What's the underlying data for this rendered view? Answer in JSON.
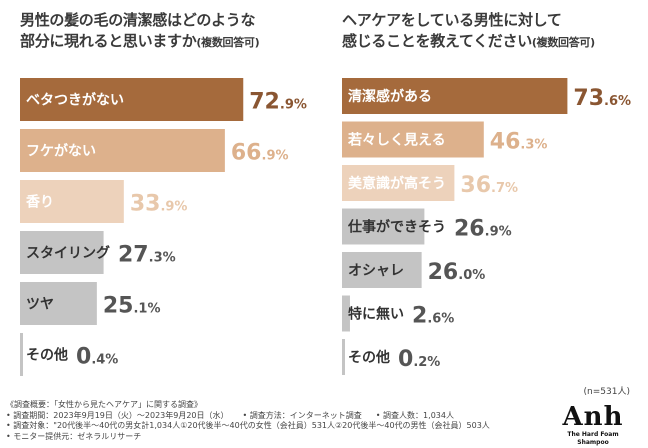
{
  "sample_note": "(n=531人)",
  "footer": {
    "survey_title": "《調査概要：「女性から見たヘアケア」に関する調査》",
    "period": "• 調査期間：2023年9月19日（火）〜2023年9月20日（水）",
    "method": "• 調査方法：インターネット調査",
    "count": "• 調査人数：1,034人",
    "target": "• 調査対象：\"20代後半〜40代の男女計1,034人①20代後半〜40代の女性（会社員）531人②20代後半〜40代の男性（会社員）503人",
    "provider": "• モニター提供元：ゼネラルリサーチ"
  },
  "logo": {
    "mark": "Anh",
    "sub": "The Hard Foam Shampoo"
  },
  "chart_data": [
    {
      "type": "bar",
      "orientation": "horizontal",
      "title_line1": "男性の髪の毛の清潔感はどのような",
      "title_line2": "部分に現れると思いますか",
      "title_note": "(複数回答可)",
      "unit": "%",
      "xlim": [
        0,
        80
      ],
      "categories": [
        "ベタつきがない",
        "フケがない",
        "香り",
        "スタイリング",
        "ツヤ",
        "その他"
      ],
      "values": [
        72.9,
        66.9,
        33.9,
        27.3,
        25.1,
        0.4
      ],
      "value_int": [
        "72",
        "66",
        "33",
        "27",
        "25",
        "0"
      ],
      "value_dec": [
        ".9",
        ".9",
        ".9",
        ".3",
        ".1",
        ".4"
      ],
      "colors": [
        "#a56a3c",
        "#ddb18c",
        "#edd2bb",
        "#c4c4c4",
        "#c4c4c4",
        "#c4c4c4"
      ],
      "label_colors": [
        "#ffffff",
        "#ffffff",
        "#ffffff",
        "#333333",
        "#333333",
        "#333333"
      ],
      "value_colors": [
        "#8a5632",
        "#ddb18c",
        "#e8c8ab",
        "#555555",
        "#555555",
        "#555555"
      ]
    },
    {
      "type": "bar",
      "orientation": "horizontal",
      "title_line1": "ヘアケアをしている男性に対して",
      "title_line2": "感じることを教えてください",
      "title_note": "(複数回答可)",
      "unit": "%",
      "xlim": [
        0,
        80
      ],
      "categories": [
        "清潔感がある",
        "若々しく見える",
        "美意識が高そう",
        "仕事ができそう",
        "オシャレ",
        "特に無い",
        "その他"
      ],
      "values": [
        73.6,
        46.3,
        36.7,
        26.9,
        26.0,
        2.6,
        0.2
      ],
      "value_int": [
        "73",
        "46",
        "36",
        "26",
        "26",
        "2",
        "0"
      ],
      "value_dec": [
        ".6",
        ".3",
        ".7",
        ".9",
        ".0",
        ".6",
        ".2"
      ],
      "colors": [
        "#a56a3c",
        "#ddb18c",
        "#edd2bb",
        "#c4c4c4",
        "#c4c4c4",
        "#c4c4c4",
        "#c4c4c4"
      ],
      "label_colors": [
        "#ffffff",
        "#ffffff",
        "#ffffff",
        "#333333",
        "#333333",
        "#333333",
        "#333333"
      ],
      "value_colors": [
        "#8a5632",
        "#ddb18c",
        "#e8c8ab",
        "#555555",
        "#555555",
        "#555555",
        "#555555"
      ]
    }
  ]
}
